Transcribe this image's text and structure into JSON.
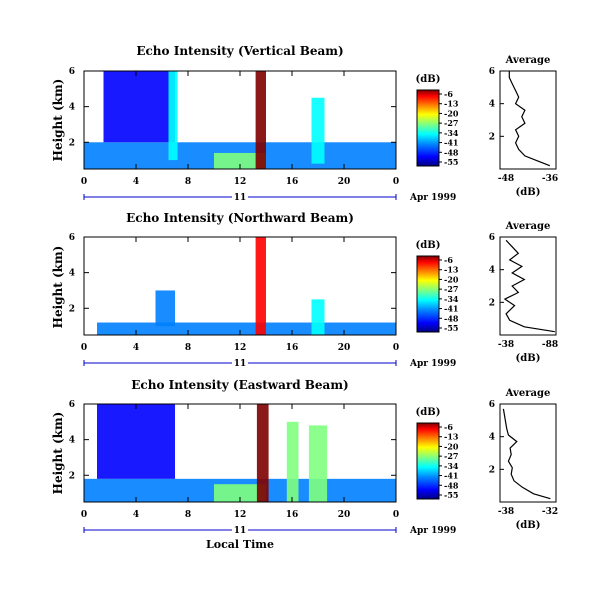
{
  "figure": {
    "date_label": "Apr 1999",
    "day_label": "11",
    "x_axis_title": "Local Time",
    "y_axis_title": "Height (km)",
    "colorbar_unit": "(dB)",
    "colorbar_ticks": [
      "-6",
      "-13",
      "-20",
      "-27",
      "-34",
      "-41",
      "-48",
      "-55"
    ],
    "colors": {
      "colormap": [
        "#000080",
        "#0000ff",
        "#0080ff",
        "#00ffff",
        "#80ff80",
        "#ffff00",
        "#ff8000",
        "#ff0000",
        "#800000"
      ],
      "day_bar": "#0000cc",
      "axis": "#000000"
    }
  },
  "chart_data": [
    {
      "type": "heatmap",
      "title": "Echo Intensity (Vertical Beam)",
      "xlabel": "",
      "ylabel": "Height (km)",
      "xlim": [
        0,
        24
      ],
      "ylim": [
        0.5,
        6
      ],
      "xticks": [
        "0",
        "4",
        "8",
        "12",
        "16",
        "20",
        "0"
      ],
      "yticks": [
        "2",
        "4",
        "6"
      ],
      "colorbar": {
        "unit": "(dB)",
        "ticks": [
          -6,
          -13,
          -20,
          -27,
          -34,
          -41,
          -48,
          -55
        ],
        "range": [
          -55,
          -3
        ]
      },
      "regions": [
        {
          "x": [
            0,
            24
          ],
          "y": [
            0.5,
            2.0
          ],
          "db": -45
        },
        {
          "x": [
            1.5,
            7
          ],
          "y": [
            2.0,
            6.0
          ],
          "db": -50
        },
        {
          "x": [
            6.5,
            7.2
          ],
          "y": [
            1.0,
            6.0
          ],
          "db": -38
        },
        {
          "x": [
            10,
            14
          ],
          "y": [
            0.5,
            1.4
          ],
          "db": -30
        },
        {
          "x": [
            13.2,
            14.0
          ],
          "y": [
            0.5,
            6.0
          ],
          "db": -6
        },
        {
          "x": [
            17.5,
            18.5
          ],
          "y": [
            0.8,
            4.5
          ],
          "db": -35
        }
      ]
    },
    {
      "type": "line",
      "title": "Average",
      "xlabel": "(dB)",
      "xticks": [
        "-48",
        "-36"
      ],
      "xlim": [
        -50,
        -32
      ],
      "ylim": [
        0,
        6
      ],
      "yticks": [
        "2",
        "4",
        "6"
      ],
      "x": [
        -34,
        -38,
        -42,
        -44,
        -45,
        -44,
        -45,
        -42,
        -43,
        -42,
        -45,
        -44,
        -45,
        -46,
        -47,
        -47
      ],
      "y": [
        0.2,
        0.5,
        0.8,
        1.2,
        1.6,
        2.0,
        2.4,
        2.8,
        3.2,
        3.6,
        4.0,
        4.4,
        4.8,
        5.2,
        5.6,
        6.0
      ]
    },
    {
      "type": "heatmap",
      "title": "Echo Intensity (Northward Beam)",
      "xlabel": "",
      "ylabel": "Height (km)",
      "xlim": [
        0,
        24
      ],
      "ylim": [
        0.5,
        6
      ],
      "xticks": [
        "0",
        "4",
        "8",
        "12",
        "16",
        "20",
        "0"
      ],
      "yticks": [
        "2",
        "4",
        "6"
      ],
      "colorbar": {
        "unit": "(dB)",
        "ticks": [
          -6,
          -13,
          -20,
          -27,
          -34,
          -41,
          -48,
          -55
        ],
        "range": [
          -55,
          -3
        ]
      },
      "regions": [
        {
          "x": [
            1,
            24
          ],
          "y": [
            0.5,
            1.2
          ],
          "db": -42
        },
        {
          "x": [
            5.5,
            7
          ],
          "y": [
            1.0,
            3.0
          ],
          "db": -40
        },
        {
          "x": [
            13.2,
            14.0
          ],
          "y": [
            0.5,
            6.0
          ],
          "db": -8
        },
        {
          "x": [
            17.5,
            18.5
          ],
          "y": [
            0.5,
            2.5
          ],
          "db": -35
        }
      ]
    },
    {
      "type": "line",
      "title": "Average",
      "xlabel": "(dB)",
      "xticks": [
        "-38",
        "-88"
      ],
      "xlim": [
        -40,
        -86
      ],
      "ylim": [
        0,
        6
      ],
      "yticks": [
        "2",
        "4",
        "6"
      ],
      "x": [
        -85,
        -60,
        -48,
        -45,
        -52,
        -44,
        -55,
        -50,
        -60,
        -50,
        -58,
        -48,
        -55,
        -50,
        -45
      ],
      "y": [
        0.2,
        0.5,
        0.9,
        1.3,
        1.8,
        2.2,
        2.6,
        3.0,
        3.4,
        3.8,
        4.2,
        4.6,
        5.0,
        5.4,
        5.8
      ]
    },
    {
      "type": "heatmap",
      "title": "Echo Intensity (Eastward Beam)",
      "xlabel": "Local Time",
      "ylabel": "Height (km)",
      "xlim": [
        0,
        24
      ],
      "ylim": [
        0.5,
        6
      ],
      "xticks": [
        "0",
        "4",
        "8",
        "12",
        "16",
        "20",
        "0"
      ],
      "yticks": [
        "2",
        "4",
        "6"
      ],
      "colorbar": {
        "unit": "(dB)",
        "ticks": [
          -6,
          -13,
          -20,
          -27,
          -34,
          -41,
          -48,
          -55
        ],
        "range": [
          -55,
          -3
        ]
      },
      "regions": [
        {
          "x": [
            0,
            24
          ],
          "y": [
            0.5,
            1.8
          ],
          "db": -43
        },
        {
          "x": [
            1,
            7
          ],
          "y": [
            1.8,
            6.0
          ],
          "db": -50
        },
        {
          "x": [
            10,
            14
          ],
          "y": [
            0.5,
            1.5
          ],
          "db": -30
        },
        {
          "x": [
            13.3,
            14.2
          ],
          "y": [
            0.5,
            6.0
          ],
          "db": -6
        },
        {
          "x": [
            15.6,
            16.5
          ],
          "y": [
            0.5,
            5.0
          ],
          "db": -30
        },
        {
          "x": [
            17.3,
            18.7
          ],
          "y": [
            0.5,
            4.8
          ],
          "db": -28
        }
      ]
    },
    {
      "type": "line",
      "title": "Average",
      "xlabel": "(dB)",
      "xticks": [
        "-38",
        "-32"
      ],
      "xlim": [
        -40,
        -30
      ],
      "ylim": [
        0,
        6
      ],
      "yticks": [
        "2",
        "4",
        "6"
      ],
      "x": [
        -31,
        -34,
        -36,
        -37.5,
        -38,
        -37.8,
        -38.5,
        -38,
        -38.2,
        -37,
        -38.5,
        -38.8,
        -39,
        -39.2,
        -39.4
      ],
      "y": [
        0.2,
        0.5,
        0.9,
        1.3,
        1.7,
        2.1,
        2.5,
        2.9,
        3.3,
        3.7,
        4.1,
        4.5,
        4.9,
        5.3,
        5.7
      ]
    }
  ]
}
